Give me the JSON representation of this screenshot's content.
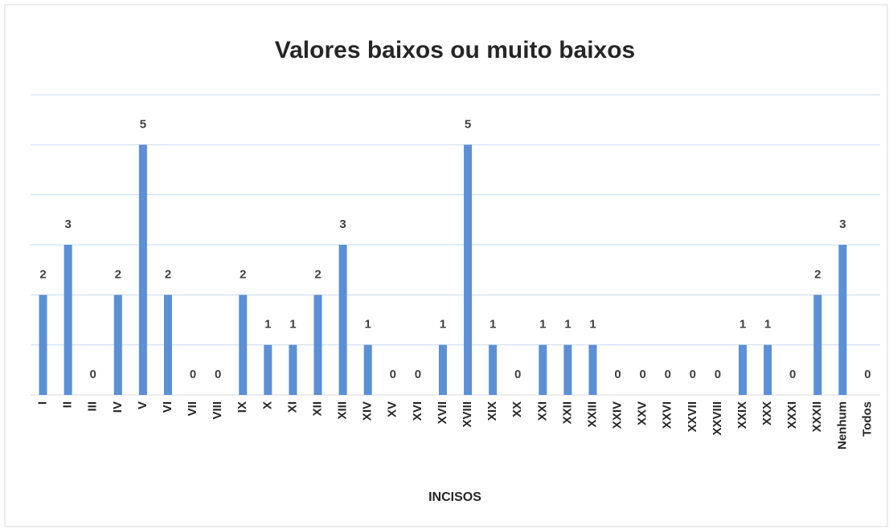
{
  "chart_data": {
    "type": "bar",
    "title": "Valores baixos ou muito baixos",
    "x_label": "INCISOS",
    "categories": [
      "I",
      "II",
      "III",
      "IV",
      "V",
      "VI",
      "VII",
      "VIII",
      "IX",
      "X",
      "XI",
      "XII",
      "XIII",
      "XIV",
      "XV",
      "XVI",
      "XVII",
      "XVIII",
      "XIX",
      "XX",
      "XXI",
      "XXII",
      "XXIII",
      "XXIV",
      "XXV",
      "XXVI",
      "XXVII",
      "XXVIII",
      "XXIX",
      "XXX",
      "XXXI",
      "XXXII",
      "Nenhum",
      "Todos"
    ],
    "values": [
      2,
      3,
      0,
      2,
      5,
      2,
      0,
      0,
      2,
      1,
      1,
      2,
      3,
      1,
      0,
      0,
      1,
      5,
      1,
      0,
      1,
      1,
      1,
      0,
      0,
      0,
      0,
      0,
      1,
      1,
      0,
      2,
      3,
      0
    ],
    "color": "#5b8fd6",
    "ylim": [
      0,
      6
    ],
    "yticks": [
      0,
      1,
      2,
      3,
      4,
      5,
      6
    ],
    "grid": true
  }
}
